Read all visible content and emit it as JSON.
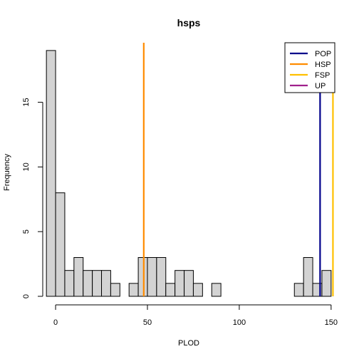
{
  "chart_data": {
    "type": "histogram",
    "title": "hsps",
    "xlabel": "PLOD",
    "ylabel": "Frequency",
    "bins": {
      "start": -5,
      "width": 5,
      "counts": [
        19,
        8,
        2,
        3,
        2,
        2,
        2,
        1,
        0,
        1,
        3,
        3,
        3,
        1,
        2,
        2,
        1,
        0,
        1,
        0,
        0,
        0,
        0,
        0,
        0,
        0,
        0,
        1,
        3,
        1,
        2
      ]
    },
    "bar_color": "#d3d3d3",
    "x_ticks": [
      0,
      50,
      100,
      150
    ],
    "x_tick_labels": [
      "0",
      "50",
      "100",
      "150"
    ],
    "y_ticks": [
      0,
      5,
      10,
      15
    ],
    "y_tick_labels": [
      "0",
      "5",
      "10",
      "15"
    ],
    "xlim": [
      -7,
      152
    ],
    "ylim": [
      0,
      19.6
    ],
    "grid": false,
    "reference_lines": [
      {
        "name": "POP",
        "x": 144,
        "color": "#00008b"
      },
      {
        "name": "HSP",
        "x": 48,
        "color": "#ff8c00"
      },
      {
        "name": "FSP",
        "x": 151,
        "color": "#ffc000"
      },
      {
        "name": "UP",
        "x": null,
        "color": "#a0208c"
      }
    ],
    "legend_position": "top-right"
  }
}
